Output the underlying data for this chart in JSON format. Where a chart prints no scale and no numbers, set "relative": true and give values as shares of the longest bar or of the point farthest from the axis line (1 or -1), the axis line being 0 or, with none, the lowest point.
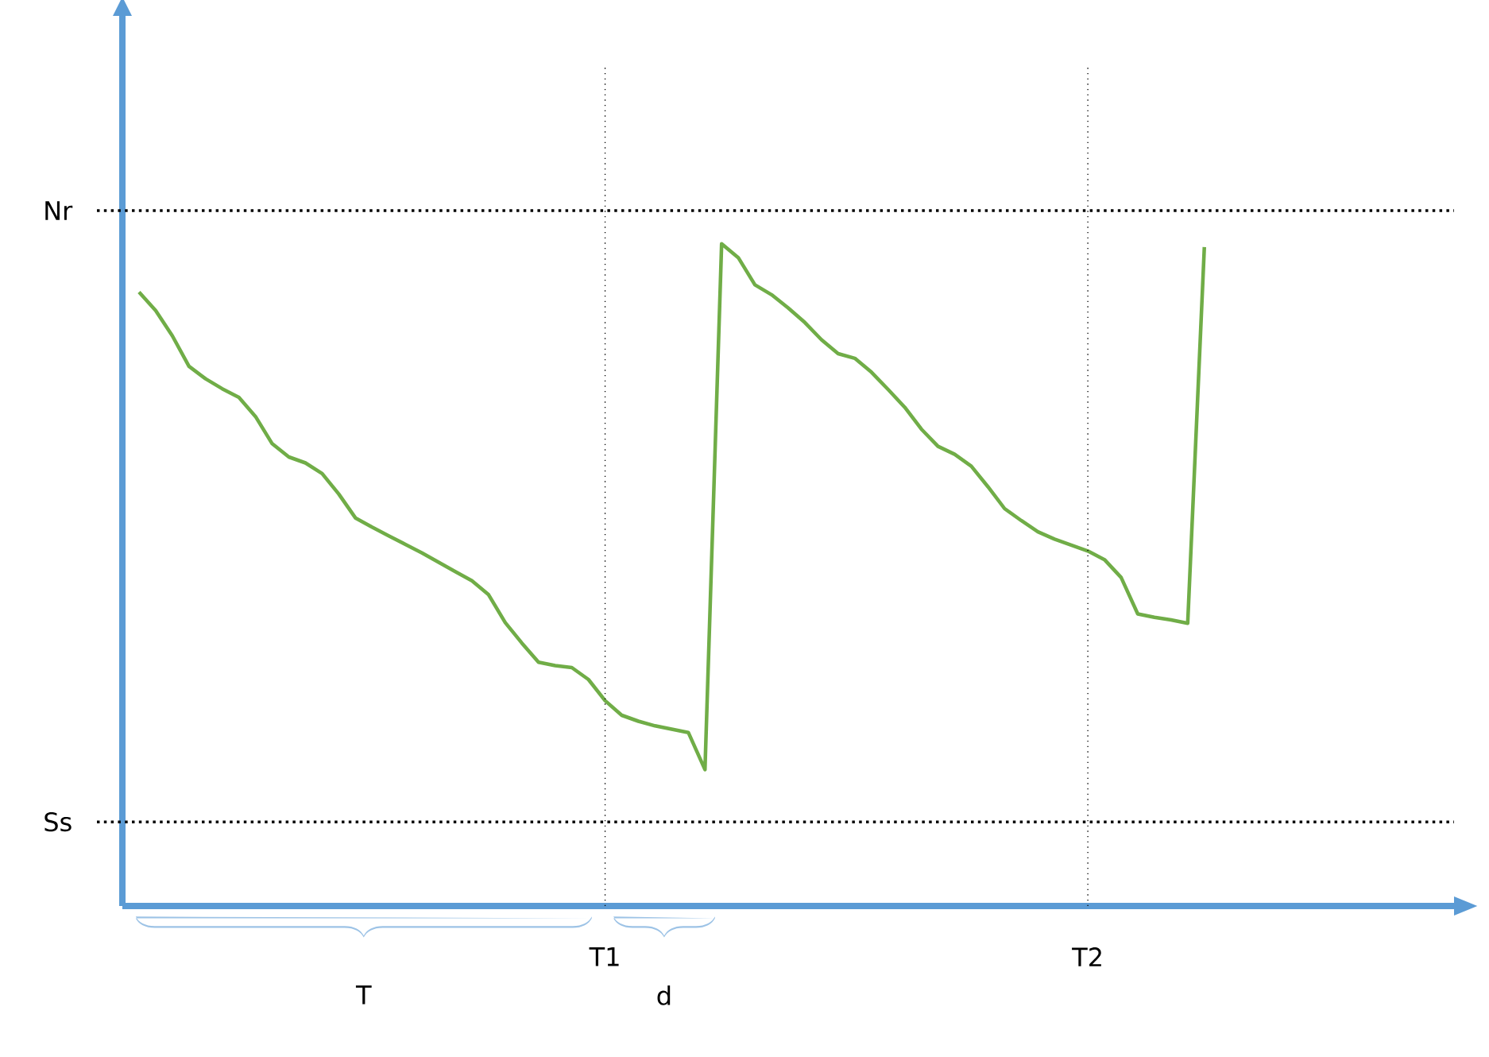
{
  "chart_data": {
    "type": "line",
    "relative": true,
    "categories": [
      null,
      null,
      null,
      null,
      null,
      null,
      null,
      null,
      null,
      null,
      null,
      null,
      null,
      null,
      null,
      null,
      null,
      null,
      null,
      null,
      null,
      null,
      null,
      null,
      null,
      null,
      null,
      null,
      null,
      "T1",
      null,
      null,
      null,
      null,
      null,
      null,
      null,
      null,
      null,
      null,
      null,
      null,
      null,
      null,
      null,
      null,
      null,
      null,
      null,
      null,
      null,
      null,
      null,
      null,
      null,
      null,
      null,
      null,
      "T2",
      null,
      null,
      null,
      null,
      null,
      null,
      null,
      null,
      null,
      null,
      null,
      null,
      null,
      null,
      null,
      null,
      null,
      null,
      null,
      null,
      null,
      null
    ],
    "series": [
      {
        "color": "#70ad47",
        "values": [
          null,
          0.927,
          0.899,
          0.861,
          0.815,
          0.796,
          0.781,
          0.768,
          0.739,
          0.698,
          0.678,
          0.669,
          0.653,
          0.622,
          0.586,
          0.572,
          0.559,
          0.546,
          0.533,
          0.519,
          0.505,
          0.491,
          0.47,
          0.428,
          0.397,
          0.368,
          0.363,
          0.36,
          0.342,
          0.31,
          0.288,
          0.279,
          0.272,
          0.267,
          0.262,
          0.206,
          1,
          0.979,
          0.938,
          0.923,
          0.903,
          0.881,
          0.855,
          0.834,
          0.827,
          0.806,
          0.78,
          0.753,
          0.72,
          0.694,
          0.682,
          0.664,
          0.633,
          0.6,
          0.582,
          0.565,
          0.554,
          0.545,
          0.536,
          0.523,
          0.496,
          0.441,
          0.436,
          0.432,
          0.427,
          0.995,
          null,
          null,
          null,
          null,
          null,
          null,
          null,
          null,
          null,
          null,
          null,
          null,
          null,
          null,
          null
        ]
      }
    ],
    "ref_lines": [
      {
        "axis": "y",
        "value": 1.05,
        "label": "Nr",
        "color": "#000000",
        "line_style": "dotted"
      },
      {
        "axis": "y",
        "value": 0.127,
        "label": "Ss",
        "color": "#000000",
        "line_style": "dotted"
      },
      {
        "axis": "x",
        "value": "T1",
        "color": "#000000",
        "line_style": "dotted"
      },
      {
        "axis": "x",
        "value": "T2",
        "color": "#000000",
        "line_style": "dotted"
      }
    ],
    "annotations": [
      "T",
      "d"
    ]
  }
}
